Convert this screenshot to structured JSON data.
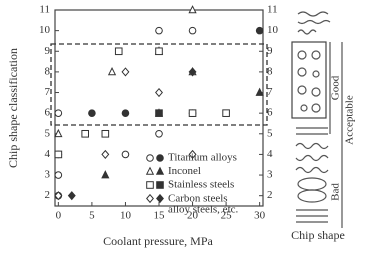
{
  "chart_data": {
    "type": "scatter",
    "xlabel": "Coolant pressure, MPa",
    "ylabel": "Chip shape classification",
    "xlim": [
      -0.5,
      30.5
    ],
    "ylim": [
      1.5,
      11
    ],
    "xticks": [
      0,
      5,
      10,
      15,
      20,
      25,
      30
    ],
    "yticks": [
      2,
      3,
      4,
      5,
      6,
      7,
      8,
      9,
      10,
      11
    ],
    "color": "#333333",
    "series": [
      {
        "name": "Titanium alloys",
        "marker": "circle",
        "x": [
          15,
          20,
          0,
          15,
          10,
          0,
          30,
          5,
          10,
          20,
          0,
          0
        ],
        "y": [
          10,
          10,
          6,
          5,
          4,
          3,
          10,
          6,
          6,
          6,
          4,
          2
        ],
        "filled": [
          false,
          false,
          false,
          false,
          false,
          false,
          true,
          true,
          true,
          true,
          true,
          true
        ]
      },
      {
        "name": "Inconel",
        "marker": "triangle",
        "x": [
          20,
          8,
          15,
          20,
          15,
          0,
          7,
          30,
          15
        ],
        "y": [
          11,
          8,
          9,
          8,
          6,
          5,
          3,
          7,
          9
        ],
        "filled": [
          false,
          false,
          false,
          false,
          false,
          false,
          true,
          true,
          true
        ]
      },
      {
        "name": "Stainless steels",
        "marker": "square",
        "x": [
          9,
          15,
          4,
          7,
          25,
          20,
          0,
          15
        ],
        "y": [
          9,
          9,
          5,
          5,
          6,
          6,
          4,
          6
        ],
        "filled": [
          false,
          false,
          false,
          false,
          false,
          false,
          false,
          true
        ]
      },
      {
        "name": "Carbon steels alloy steels, etc.",
        "marker": "diamond",
        "x": [
          10,
          15,
          7,
          20,
          0,
          2,
          20
        ],
        "y": [
          8,
          7,
          4,
          4,
          2,
          2,
          8
        ],
        "filled": [
          false,
          false,
          false,
          false,
          false,
          true,
          true
        ]
      }
    ],
    "quality_labels": [
      "Good",
      "Acceptable",
      "Bad"
    ],
    "side_title": "Chip shape"
  }
}
